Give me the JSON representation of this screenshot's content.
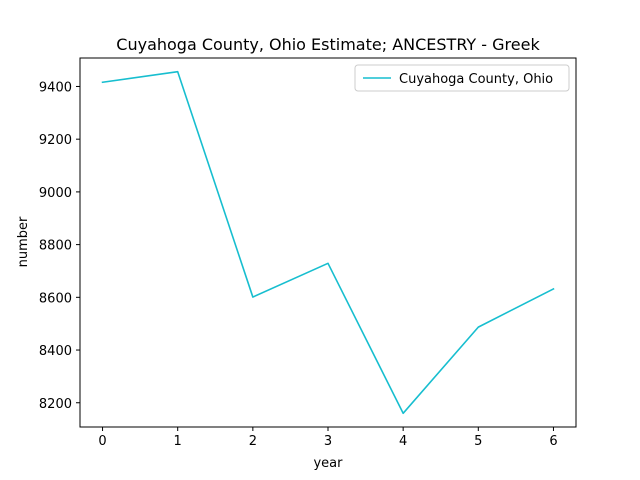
{
  "chart_data": {
    "type": "line",
    "title": "Cuyahoga County, Ohio Estimate; ANCESTRY - Greek",
    "xlabel": "year",
    "ylabel": "number",
    "x": [
      0,
      1,
      2,
      3,
      4,
      5,
      6
    ],
    "series": [
      {
        "name": "Cuyahoga County, Ohio",
        "color": "#17becf",
        "values": [
          9416,
          9456,
          8601,
          8729,
          8160,
          8487,
          8632
        ]
      }
    ],
    "xlim": [
      -0.3,
      6.3
    ],
    "ylim": [
      8108,
      9508
    ],
    "xticks": [
      0,
      1,
      2,
      3,
      4,
      5,
      6
    ],
    "yticks": [
      8200,
      8400,
      8600,
      8800,
      9000,
      9200,
      9400
    ],
    "grid": false,
    "legend_position": "upper right"
  }
}
